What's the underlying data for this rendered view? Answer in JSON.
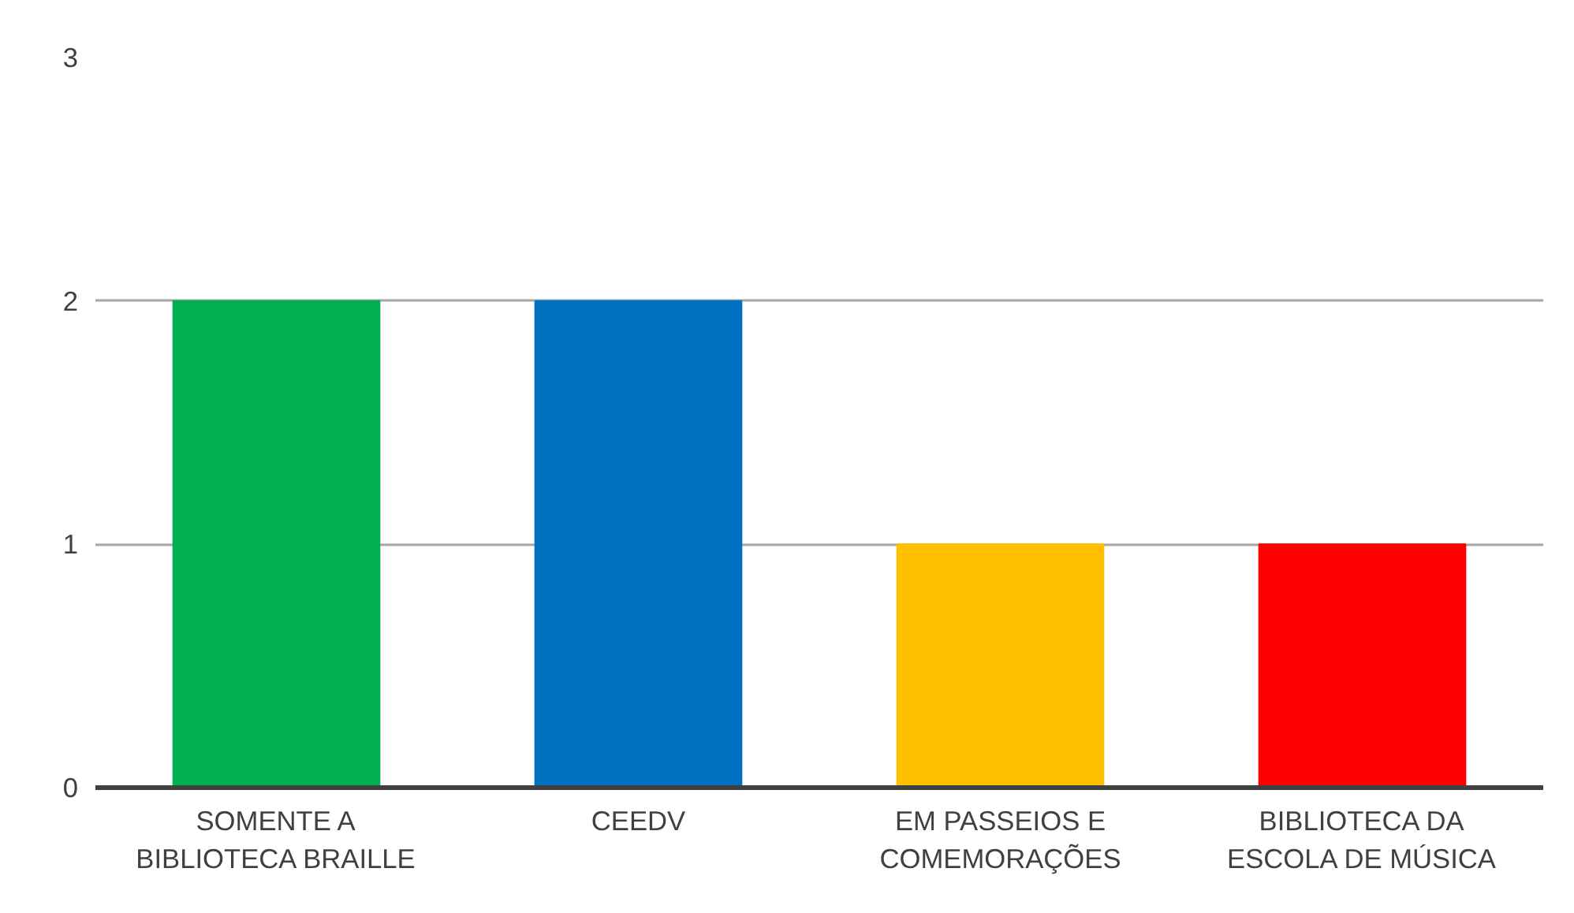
{
  "chart_data": {
    "type": "bar",
    "categories": [
      "SOMENTE A\nBIBLIOTECA BRAILLE",
      "CEEDV",
      "EM PASSEIOS E\nCOMEMORAÇÕES",
      "BIBLIOTECA DA\nESCOLA DE MÚSICA"
    ],
    "values": [
      2,
      2,
      1,
      1
    ],
    "colors": [
      "#00b050",
      "#0070c0",
      "#ffc000",
      "#ff0000"
    ],
    "ylim": [
      0,
      3
    ],
    "yticks": [
      0,
      1,
      2,
      3
    ],
    "grid": "y"
  }
}
